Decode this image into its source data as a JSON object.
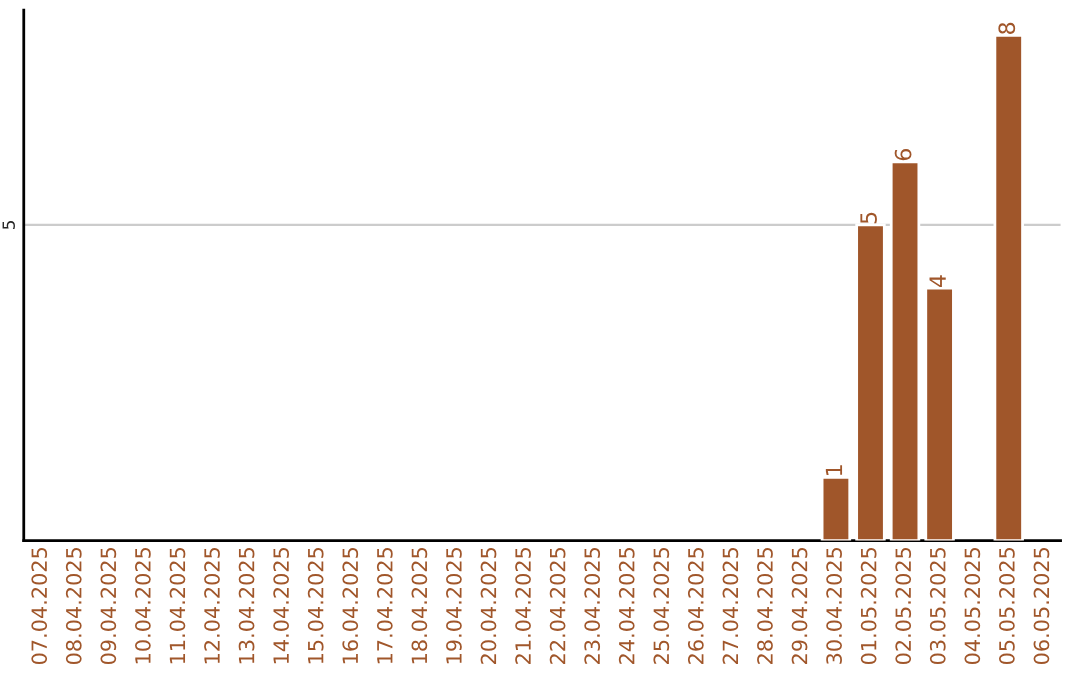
{
  "chart_data": {
    "type": "bar",
    "categories": [
      "07.04.2025",
      "08.04.2025",
      "09.04.2025",
      "10.04.2025",
      "11.04.2025",
      "12.04.2025",
      "13.04.2025",
      "14.04.2025",
      "15.04.2025",
      "16.04.2025",
      "17.04.2025",
      "18.04.2025",
      "19.04.2025",
      "20.04.2025",
      "21.04.2025",
      "22.04.2025",
      "23.04.2025",
      "24.04.2025",
      "25.04.2025",
      "26.04.2025",
      "27.04.2025",
      "28.04.2025",
      "29.04.2025",
      "30.04.2025",
      "01.05.2025",
      "02.05.2025",
      "03.05.2025",
      "04.05.2025",
      "05.05.2025",
      "06.05.2025"
    ],
    "values": [
      null,
      null,
      null,
      null,
      null,
      null,
      null,
      null,
      null,
      null,
      null,
      null,
      null,
      null,
      null,
      null,
      null,
      null,
      null,
      null,
      null,
      null,
      null,
      1,
      5,
      6,
      4,
      null,
      8,
      null
    ],
    "color": "#a0562a",
    "ylim": [
      0,
      8.4
    ],
    "yticks": [
      5
    ],
    "grid": "y",
    "data_labels": true
  }
}
